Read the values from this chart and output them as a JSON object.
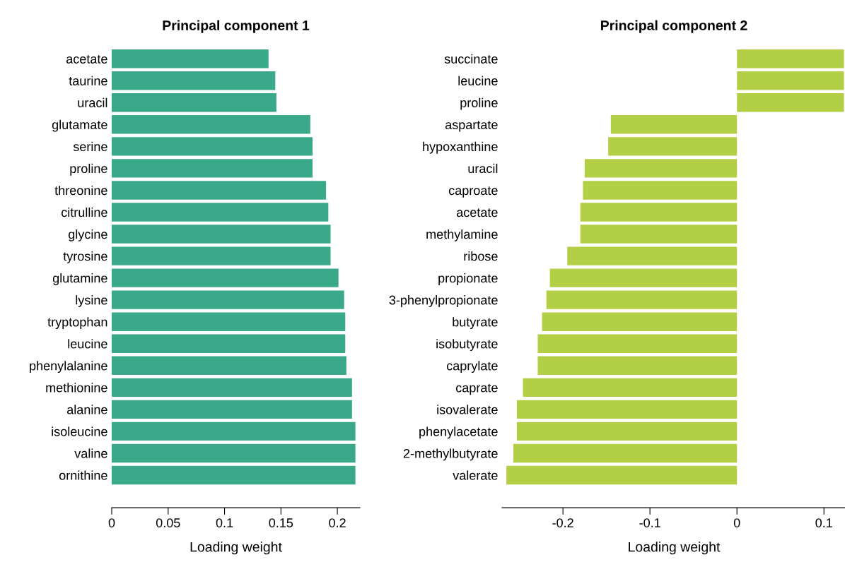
{
  "chart_data": [
    {
      "type": "bar",
      "orientation": "horizontal",
      "title": "Principal component 1",
      "xlabel": "Loading weight",
      "color": "#3aa98a",
      "xlim": [
        0,
        0.22
      ],
      "xticks": [
        0,
        0.05,
        0.1,
        0.15,
        0.2
      ],
      "grid": false,
      "legend": false,
      "categories": [
        "acetate",
        "taurine",
        "uracil",
        "glutamate",
        "serine",
        "proline",
        "threonine",
        "citrulline",
        "glycine",
        "tyrosine",
        "glutamine",
        "lysine",
        "tryptophan",
        "leucine",
        "phenylalanine",
        "methionine",
        "alanine",
        "isoleucine",
        "valine",
        "ornithine"
      ],
      "values": [
        0.139,
        0.145,
        0.146,
        0.176,
        0.178,
        0.178,
        0.19,
        0.192,
        0.194,
        0.194,
        0.201,
        0.206,
        0.207,
        0.207,
        0.208,
        0.213,
        0.213,
        0.216,
        0.216,
        0.216
      ]
    },
    {
      "type": "bar",
      "orientation": "horizontal",
      "title": "Principal component 2",
      "xlabel": "Loading weight",
      "color": "#b3cf46",
      "xlim": [
        -0.27,
        0.125
      ],
      "xticks": [
        -0.2,
        -0.1,
        0,
        0.1
      ],
      "grid": false,
      "legend": false,
      "categories": [
        "succinate",
        "leucine",
        "proline",
        "aspartate",
        "hypoxanthine",
        "uracil",
        "caproate",
        "acetate",
        "methylamine",
        "ribose",
        "propionate",
        "3-phenylpropionate",
        "butyrate",
        "isobutyrate",
        "caprylate",
        "caprate",
        "isovalerate",
        "phenylacetate",
        "2-methylbutyrate",
        "valerate"
      ],
      "values": [
        0.123,
        0.123,
        0.123,
        -0.145,
        -0.148,
        -0.175,
        -0.177,
        -0.18,
        -0.18,
        -0.195,
        -0.215,
        -0.219,
        -0.224,
        -0.229,
        -0.229,
        -0.246,
        -0.253,
        -0.253,
        -0.257,
        -0.265
      ]
    }
  ]
}
